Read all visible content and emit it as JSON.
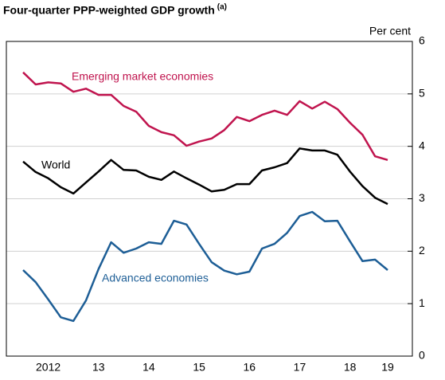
{
  "chart_data": {
    "type": "line",
    "title": "Four-quarter PPP-weighted GDP growth",
    "title_note": "(a)",
    "y_axis_label": "Per cent",
    "categories": [
      null,
      null,
      "2012",
      null,
      null,
      null,
      "13",
      null,
      null,
      null,
      "14",
      null,
      null,
      null,
      "15",
      null,
      null,
      null,
      "16",
      null,
      null,
      null,
      "17",
      null,
      null,
      null,
      "18",
      null,
      null,
      "19"
    ],
    "series": [
      {
        "name": "Emerging market economies",
        "color": "#c0144e",
        "values": [
          5.41,
          5.18,
          5.22,
          5.2,
          5.04,
          5.1,
          4.98,
          4.98,
          4.77,
          4.66,
          4.39,
          4.27,
          4.21,
          4.01,
          4.09,
          4.15,
          4.31,
          4.56,
          4.48,
          4.6,
          4.68,
          4.6,
          4.86,
          4.72,
          4.85,
          4.71,
          4.45,
          4.22,
          3.81,
          3.74
        ]
      },
      {
        "name": "World",
        "color": "#000000",
        "values": [
          3.71,
          3.51,
          3.39,
          3.22,
          3.1,
          3.31,
          3.52,
          3.74,
          3.55,
          3.54,
          3.42,
          3.36,
          3.52,
          3.39,
          3.27,
          3.14,
          3.17,
          3.28,
          3.28,
          3.54,
          3.6,
          3.68,
          3.96,
          3.92,
          3.92,
          3.84,
          3.52,
          3.24,
          3.02,
          2.9
        ]
      },
      {
        "name": "Advanced economies",
        "color": "#1d5e96",
        "values": [
          1.64,
          1.41,
          1.08,
          0.74,
          0.67,
          1.06,
          1.66,
          2.17,
          1.97,
          2.05,
          2.17,
          2.14,
          2.58,
          2.51,
          2.14,
          1.79,
          1.63,
          1.56,
          1.61,
          2.05,
          2.14,
          2.35,
          2.67,
          2.75,
          2.57,
          2.58,
          2.19,
          1.81,
          1.84,
          1.64
        ]
      }
    ],
    "ylim": [
      0,
      6
    ],
    "yticks": [
      0,
      1,
      2,
      3,
      4,
      5,
      6
    ],
    "grid": true
  }
}
